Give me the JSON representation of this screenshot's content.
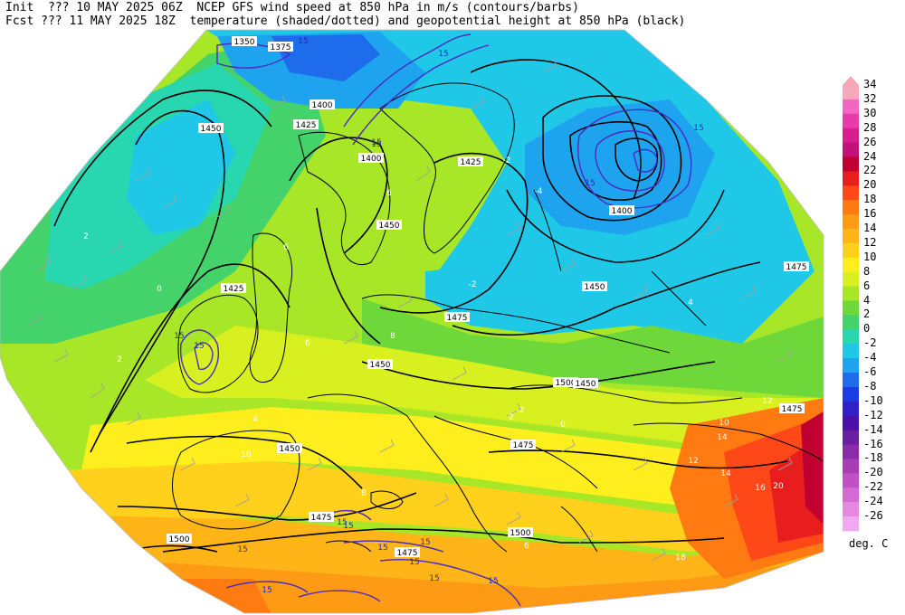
{
  "header": {
    "line1": "Init  ??? 10 MAY 2025 06Z  NCEP GFS wind speed at 850 hPa in m/s (contours/barbs)",
    "line2": "Fcst ??? 11 MAY 2025 18Z  temperature (shaded/dotted) and geopotential height at 850 hPa (black)"
  },
  "legend": {
    "units": "deg. C",
    "levels": [
      "34",
      "32",
      "30",
      "28",
      "26",
      "24",
      "22",
      "20",
      "18",
      "16",
      "14",
      "12",
      "10",
      "8",
      "6",
      "4",
      "2",
      "0",
      "-2",
      "-4",
      "-6",
      "-8",
      "-10",
      "-12",
      "-14",
      "-16",
      "-18",
      "-20",
      "-22",
      "-24",
      "-26"
    ],
    "colors": [
      "#f7a8b8",
      "#f066c0",
      "#e83aa8",
      "#d81e8c",
      "#c4107a",
      "#c00030",
      "#e81e1e",
      "#ff4818",
      "#ff7a10",
      "#ff9a14",
      "#ffb418",
      "#ffd01c",
      "#ffee1e",
      "#d8f020",
      "#a8e628",
      "#6ed83a",
      "#44d26a",
      "#28d6b0",
      "#20c8e8",
      "#1ea4ee",
      "#1e6cec",
      "#1a3ce2",
      "#3020c8",
      "#4a10a8",
      "#6a1ea0",
      "#8a2ca8",
      "#a83cb4",
      "#c050c4",
      "#d46ad4",
      "#e488e0",
      "#f0aaf0"
    ]
  },
  "height_labels": [
    "1350",
    "1375",
    "1400",
    "1425",
    "1450",
    "1400",
    "1425",
    "1450",
    "1475",
    "1500",
    "1425",
    "1400",
    "1450",
    "1475",
    "1450",
    "1475",
    "1450",
    "1500",
    "1475",
    "1475",
    "1475",
    "1500",
    "1450"
  ],
  "wind_labels": [
    "15",
    "15",
    "15",
    "15",
    "15",
    "15",
    "15",
    "15",
    "15",
    "15",
    "15",
    "15",
    "15",
    "15",
    "15",
    "15",
    "15"
  ],
  "temp_labels": [
    "2",
    "0",
    "2",
    "4",
    "6",
    "6",
    "6",
    "8",
    "8",
    "10",
    "10",
    "12",
    "14",
    "12",
    "14",
    "16",
    "18",
    "20",
    "-2",
    "-4",
    "-2",
    "-2",
    "0",
    "2",
    "4",
    "6"
  ],
  "map_colors": {
    "land_outline": "#000000",
    "height_contour": "#000000",
    "wind_contour": "#4a2ac0",
    "barb": "#b8b8b8"
  }
}
